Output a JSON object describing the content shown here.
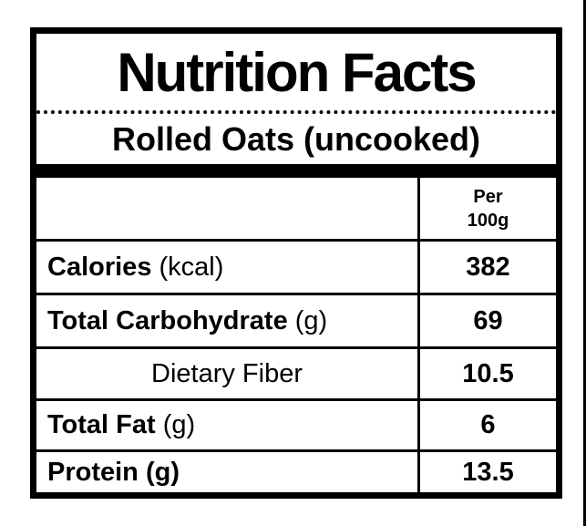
{
  "label": {
    "title": "Nutrition Facts",
    "product": "Rolled Oats (uncooked)",
    "column_header": {
      "line1": "Per",
      "line2": "100g"
    },
    "rows": [
      {
        "bold": "Calories",
        "regular": " (kcal)",
        "value": "382"
      },
      {
        "bold": "Total Carbohydrate",
        "regular": " (g)",
        "value": "69"
      },
      {
        "bold": "",
        "regular": "Dietary Fiber",
        "value": "10.5"
      },
      {
        "bold": "Total Fat",
        "regular": " (g)",
        "value": "6"
      },
      {
        "bold": "Protein (g)",
        "regular": "",
        "value": "13.5"
      }
    ],
    "colors": {
      "text": "#000000",
      "background": "#ffffff",
      "border": "#000000"
    }
  }
}
